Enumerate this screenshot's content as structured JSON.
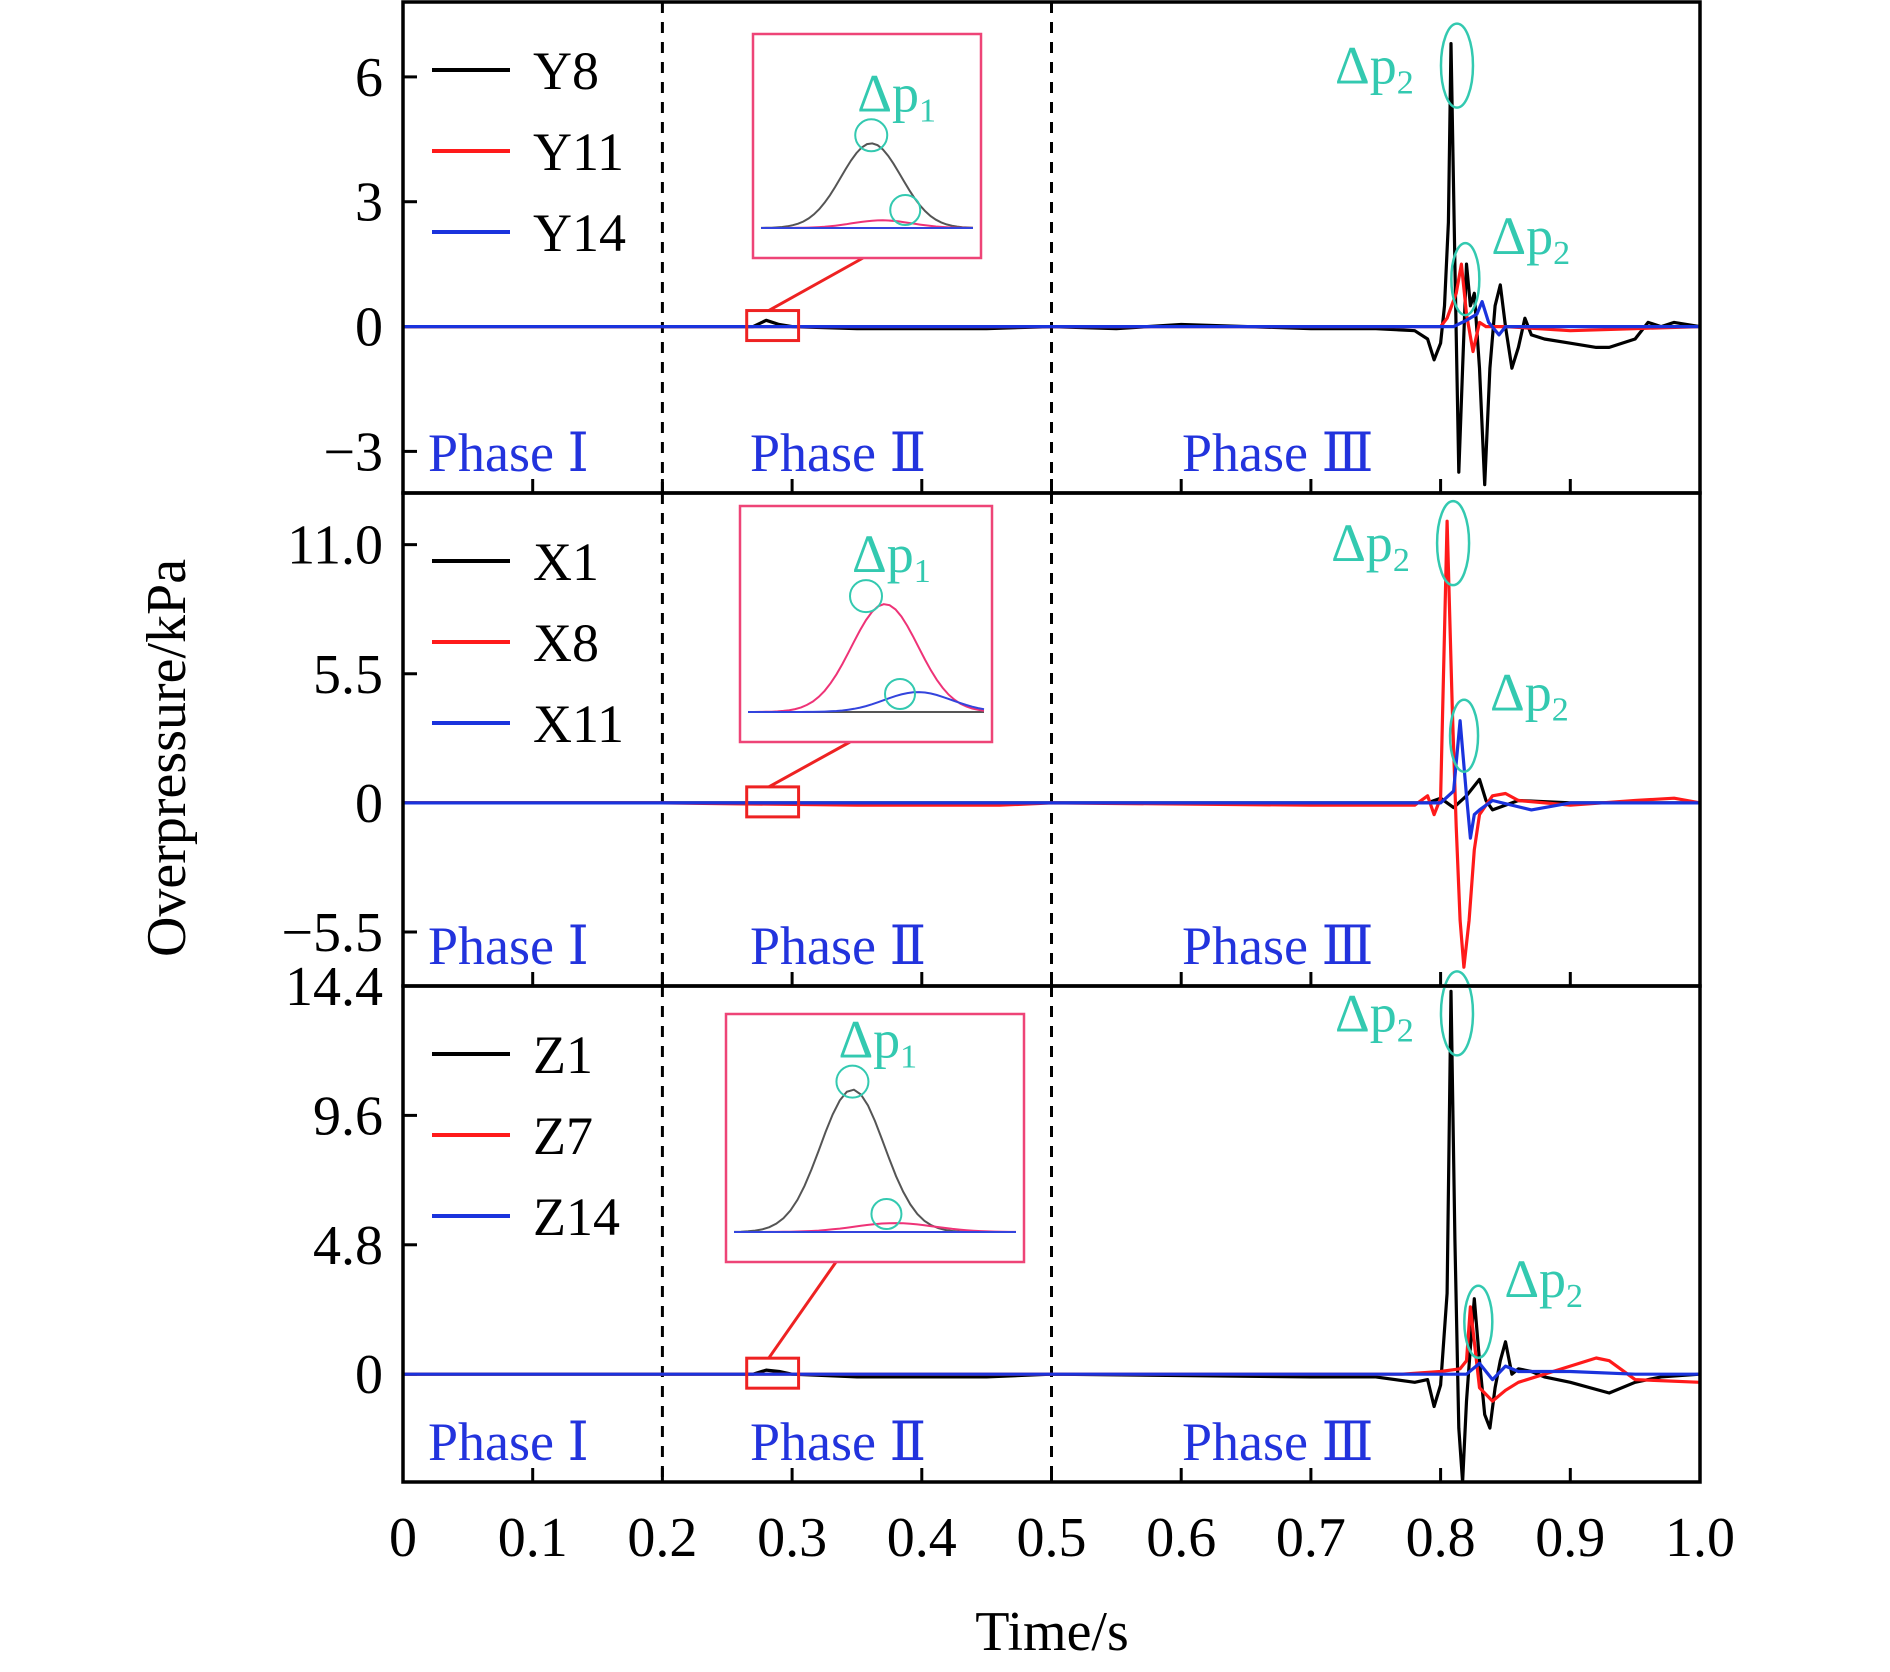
{
  "figure": {
    "ylabel": "Overpressure/kPa",
    "xlabel": "Time/s",
    "x_ticks": [
      "0",
      "0.1",
      "0.2",
      "0.3",
      "0.4",
      "0.5",
      "0.6",
      "0.7",
      "0.8",
      "0.9",
      "1.0"
    ]
  },
  "colors": {
    "phase_label": "#2233dd",
    "annotation": "#33c9b0",
    "inset_border": "#ee4477",
    "zoom_box": "#ee2222"
  },
  "chart_data": [
    {
      "type": "line",
      "xlim": [
        0,
        1.0
      ],
      "ylim": [
        -4,
        7.8
      ],
      "yticks": [
        -3,
        0,
        3,
        6
      ],
      "ytick_labels": [
        "−3",
        "0",
        "3",
        "6"
      ],
      "phase_dividers": [
        0.2,
        0.5
      ],
      "phases": [
        "Phase Ⅰ",
        "Phase Ⅱ",
        "Phase Ⅲ"
      ],
      "legend": [
        "Y8",
        "Y11",
        "Y14"
      ],
      "legend_position": "top-left",
      "annotation_primary": "Δp",
      "annotation_subscripts": [
        "1",
        "2"
      ],
      "series": [
        {
          "name": "Y8",
          "color": "#000000",
          "points": [
            [
              0,
              0
            ],
            [
              0.2,
              0
            ],
            [
              0.27,
              0
            ],
            [
              0.28,
              0.15
            ],
            [
              0.29,
              0.05
            ],
            [
              0.3,
              0
            ],
            [
              0.35,
              -0.05
            ],
            [
              0.45,
              -0.05
            ],
            [
              0.5,
              0
            ],
            [
              0.55,
              -0.05
            ],
            [
              0.6,
              0.05
            ],
            [
              0.7,
              -0.05
            ],
            [
              0.75,
              -0.05
            ],
            [
              0.78,
              -0.1
            ],
            [
              0.79,
              -0.3
            ],
            [
              0.795,
              -0.8
            ],
            [
              0.8,
              -0.4
            ],
            [
              0.803,
              0.5
            ],
            [
              0.806,
              2.5
            ],
            [
              0.808,
              6.8
            ],
            [
              0.811,
              1.5
            ],
            [
              0.814,
              -3.5
            ],
            [
              0.817,
              -1.0
            ],
            [
              0.82,
              1.5
            ],
            [
              0.823,
              0.5
            ],
            [
              0.826,
              0.8
            ],
            [
              0.83,
              -1.0
            ],
            [
              0.834,
              -3.8
            ],
            [
              0.838,
              -1.0
            ],
            [
              0.842,
              0.5
            ],
            [
              0.846,
              1.0
            ],
            [
              0.85,
              0.0
            ],
            [
              0.855,
              -1.0
            ],
            [
              0.86,
              -0.5
            ],
            [
              0.865,
              0.2
            ],
            [
              0.87,
              -0.2
            ],
            [
              0.88,
              -0.3
            ],
            [
              0.9,
              -0.4
            ],
            [
              0.92,
              -0.5
            ],
            [
              0.93,
              -0.5
            ],
            [
              0.95,
              -0.3
            ],
            [
              0.96,
              0.1
            ],
            [
              0.97,
              0.0
            ],
            [
              0.98,
              0.1
            ],
            [
              1.0,
              0.0
            ]
          ]
        },
        {
          "name": "Y11",
          "color": "#ff1a1a",
          "points": [
            [
              0,
              0
            ],
            [
              0.8,
              0
            ],
            [
              0.805,
              0.2
            ],
            [
              0.812,
              0.8
            ],
            [
              0.816,
              1.5
            ],
            [
              0.82,
              0.3
            ],
            [
              0.825,
              -0.6
            ],
            [
              0.83,
              0.1
            ],
            [
              0.835,
              0.0
            ],
            [
              0.85,
              0.0
            ],
            [
              0.9,
              -0.1
            ],
            [
              0.95,
              -0.05
            ],
            [
              1.0,
              0
            ]
          ]
        },
        {
          "name": "Y14",
          "color": "#1a33dd",
          "points": [
            [
              0,
              0
            ],
            [
              0.81,
              0
            ],
            [
              0.82,
              0.15
            ],
            [
              0.828,
              0.3
            ],
            [
              0.832,
              0.6
            ],
            [
              0.837,
              0.1
            ],
            [
              0.845,
              -0.2
            ],
            [
              0.85,
              0.0
            ],
            [
              0.9,
              0.0
            ],
            [
              1.0,
              0
            ]
          ]
        }
      ]
    },
    {
      "type": "line",
      "xlim": [
        0,
        1.0
      ],
      "ylim": [
        -7.8,
        13.2
      ],
      "yticks": [
        -5.5,
        0,
        5.5,
        11.0
      ],
      "ytick_labels": [
        "−5.5",
        "0",
        "5.5",
        "11.0"
      ],
      "phase_dividers": [
        0.2,
        0.5
      ],
      "phases": [
        "Phase Ⅰ",
        "Phase Ⅱ",
        "Phase Ⅲ"
      ],
      "legend": [
        "X1",
        "X8",
        "X11"
      ],
      "legend_position": "top-left",
      "annotation_primary": "Δp",
      "annotation_subscripts": [
        "1",
        "2"
      ],
      "series": [
        {
          "name": "X1",
          "color": "#000000",
          "points": [
            [
              0,
              0
            ],
            [
              0.79,
              0
            ],
            [
              0.8,
              0.2
            ],
            [
              0.81,
              -0.2
            ],
            [
              0.82,
              0.3
            ],
            [
              0.83,
              1.0
            ],
            [
              0.835,
              0.1
            ],
            [
              0.84,
              -0.3
            ],
            [
              0.86,
              0.1
            ],
            [
              0.9,
              0.0
            ],
            [
              1.0,
              0
            ]
          ]
        },
        {
          "name": "X8",
          "color": "#ff1a1a",
          "points": [
            [
              0,
              0
            ],
            [
              0.2,
              0
            ],
            [
              0.35,
              -0.1
            ],
            [
              0.46,
              -0.1
            ],
            [
              0.5,
              0
            ],
            [
              0.7,
              -0.1
            ],
            [
              0.78,
              -0.1
            ],
            [
              0.79,
              0.3
            ],
            [
              0.795,
              -0.5
            ],
            [
              0.8,
              0.2
            ],
            [
              0.805,
              12.0
            ],
            [
              0.809,
              4.0
            ],
            [
              0.812,
              -1.0
            ],
            [
              0.815,
              -5.0
            ],
            [
              0.818,
              -7.0
            ],
            [
              0.822,
              -5.0
            ],
            [
              0.826,
              -2.0
            ],
            [
              0.83,
              -0.5
            ],
            [
              0.84,
              0.3
            ],
            [
              0.85,
              0.4
            ],
            [
              0.86,
              0.1
            ],
            [
              0.9,
              -0.1
            ],
            [
              0.95,
              0.1
            ],
            [
              0.98,
              0.2
            ],
            [
              1.0,
              0
            ]
          ]
        },
        {
          "name": "X11",
          "color": "#1a33dd",
          "points": [
            [
              0,
              0
            ],
            [
              0.8,
              0
            ],
            [
              0.81,
              0.5
            ],
            [
              0.815,
              3.5
            ],
            [
              0.82,
              0.3
            ],
            [
              0.823,
              -1.5
            ],
            [
              0.826,
              -0.5
            ],
            [
              0.83,
              -0.3
            ],
            [
              0.84,
              0.1
            ],
            [
              0.87,
              -0.3
            ],
            [
              0.9,
              0.0
            ],
            [
              1.0,
              0
            ]
          ]
        }
      ]
    },
    {
      "type": "line",
      "xlim": [
        0,
        1.0
      ],
      "ylim": [
        -4,
        14.4
      ],
      "yticks": [
        0,
        4.8,
        9.6,
        14.4
      ],
      "ytick_labels": [
        "0",
        "4.8",
        "9.6",
        "14.4"
      ],
      "phase_dividers": [
        0.2,
        0.5
      ],
      "phases": [
        "Phase Ⅰ",
        "Phase Ⅱ",
        "Phase Ⅲ"
      ],
      "legend": [
        "Z1",
        "Z7",
        "Z14"
      ],
      "legend_position": "top-left",
      "annotation_primary": "Δp",
      "annotation_subscripts": [
        "1",
        "2"
      ],
      "series": [
        {
          "name": "Z1",
          "color": "#000000",
          "points": [
            [
              0,
              0
            ],
            [
              0.2,
              0
            ],
            [
              0.27,
              0
            ],
            [
              0.28,
              0.15
            ],
            [
              0.29,
              0.1
            ],
            [
              0.3,
              0
            ],
            [
              0.35,
              -0.1
            ],
            [
              0.45,
              -0.1
            ],
            [
              0.5,
              0
            ],
            [
              0.7,
              -0.1
            ],
            [
              0.75,
              -0.1
            ],
            [
              0.78,
              -0.3
            ],
            [
              0.79,
              -0.2
            ],
            [
              0.795,
              -1.2
            ],
            [
              0.8,
              -0.4
            ],
            [
              0.805,
              3.0
            ],
            [
              0.808,
              14.2
            ],
            [
              0.811,
              5.0
            ],
            [
              0.814,
              -2.0
            ],
            [
              0.817,
              -4.0
            ],
            [
              0.82,
              -1.0
            ],
            [
              0.823,
              1.0
            ],
            [
              0.826,
              2.8
            ],
            [
              0.83,
              0.5
            ],
            [
              0.834,
              -1.5
            ],
            [
              0.838,
              -2.0
            ],
            [
              0.842,
              -0.5
            ],
            [
              0.846,
              0.5
            ],
            [
              0.85,
              1.2
            ],
            [
              0.855,
              0.0
            ],
            [
              0.86,
              0.2
            ],
            [
              0.87,
              0.1
            ],
            [
              0.88,
              -0.1
            ],
            [
              0.9,
              -0.3
            ],
            [
              0.93,
              -0.7
            ],
            [
              0.95,
              -0.3
            ],
            [
              0.97,
              -0.1
            ],
            [
              1.0,
              0
            ]
          ]
        },
        {
          "name": "Z7",
          "color": "#ff1a1a",
          "points": [
            [
              0,
              0
            ],
            [
              0.77,
              0
            ],
            [
              0.8,
              0.1
            ],
            [
              0.815,
              0.2
            ],
            [
              0.82,
              0.5
            ],
            [
              0.823,
              2.5
            ],
            [
              0.826,
              1.2
            ],
            [
              0.83,
              -0.5
            ],
            [
              0.84,
              -1.0
            ],
            [
              0.85,
              -0.6
            ],
            [
              0.86,
              -0.3
            ],
            [
              0.88,
              0.0
            ],
            [
              0.9,
              0.3
            ],
            [
              0.92,
              0.6
            ],
            [
              0.93,
              0.5
            ],
            [
              0.95,
              -0.2
            ],
            [
              1.0,
              -0.3
            ]
          ]
        },
        {
          "name": "Z14",
          "color": "#1a33dd",
          "points": [
            [
              0,
              0
            ],
            [
              0.82,
              0
            ],
            [
              0.83,
              0.4
            ],
            [
              0.84,
              -0.2
            ],
            [
              0.85,
              0.3
            ],
            [
              0.86,
              0.1
            ],
            [
              0.9,
              0.1
            ],
            [
              0.95,
              0.0
            ],
            [
              1.0,
              0
            ]
          ]
        }
      ]
    }
  ]
}
